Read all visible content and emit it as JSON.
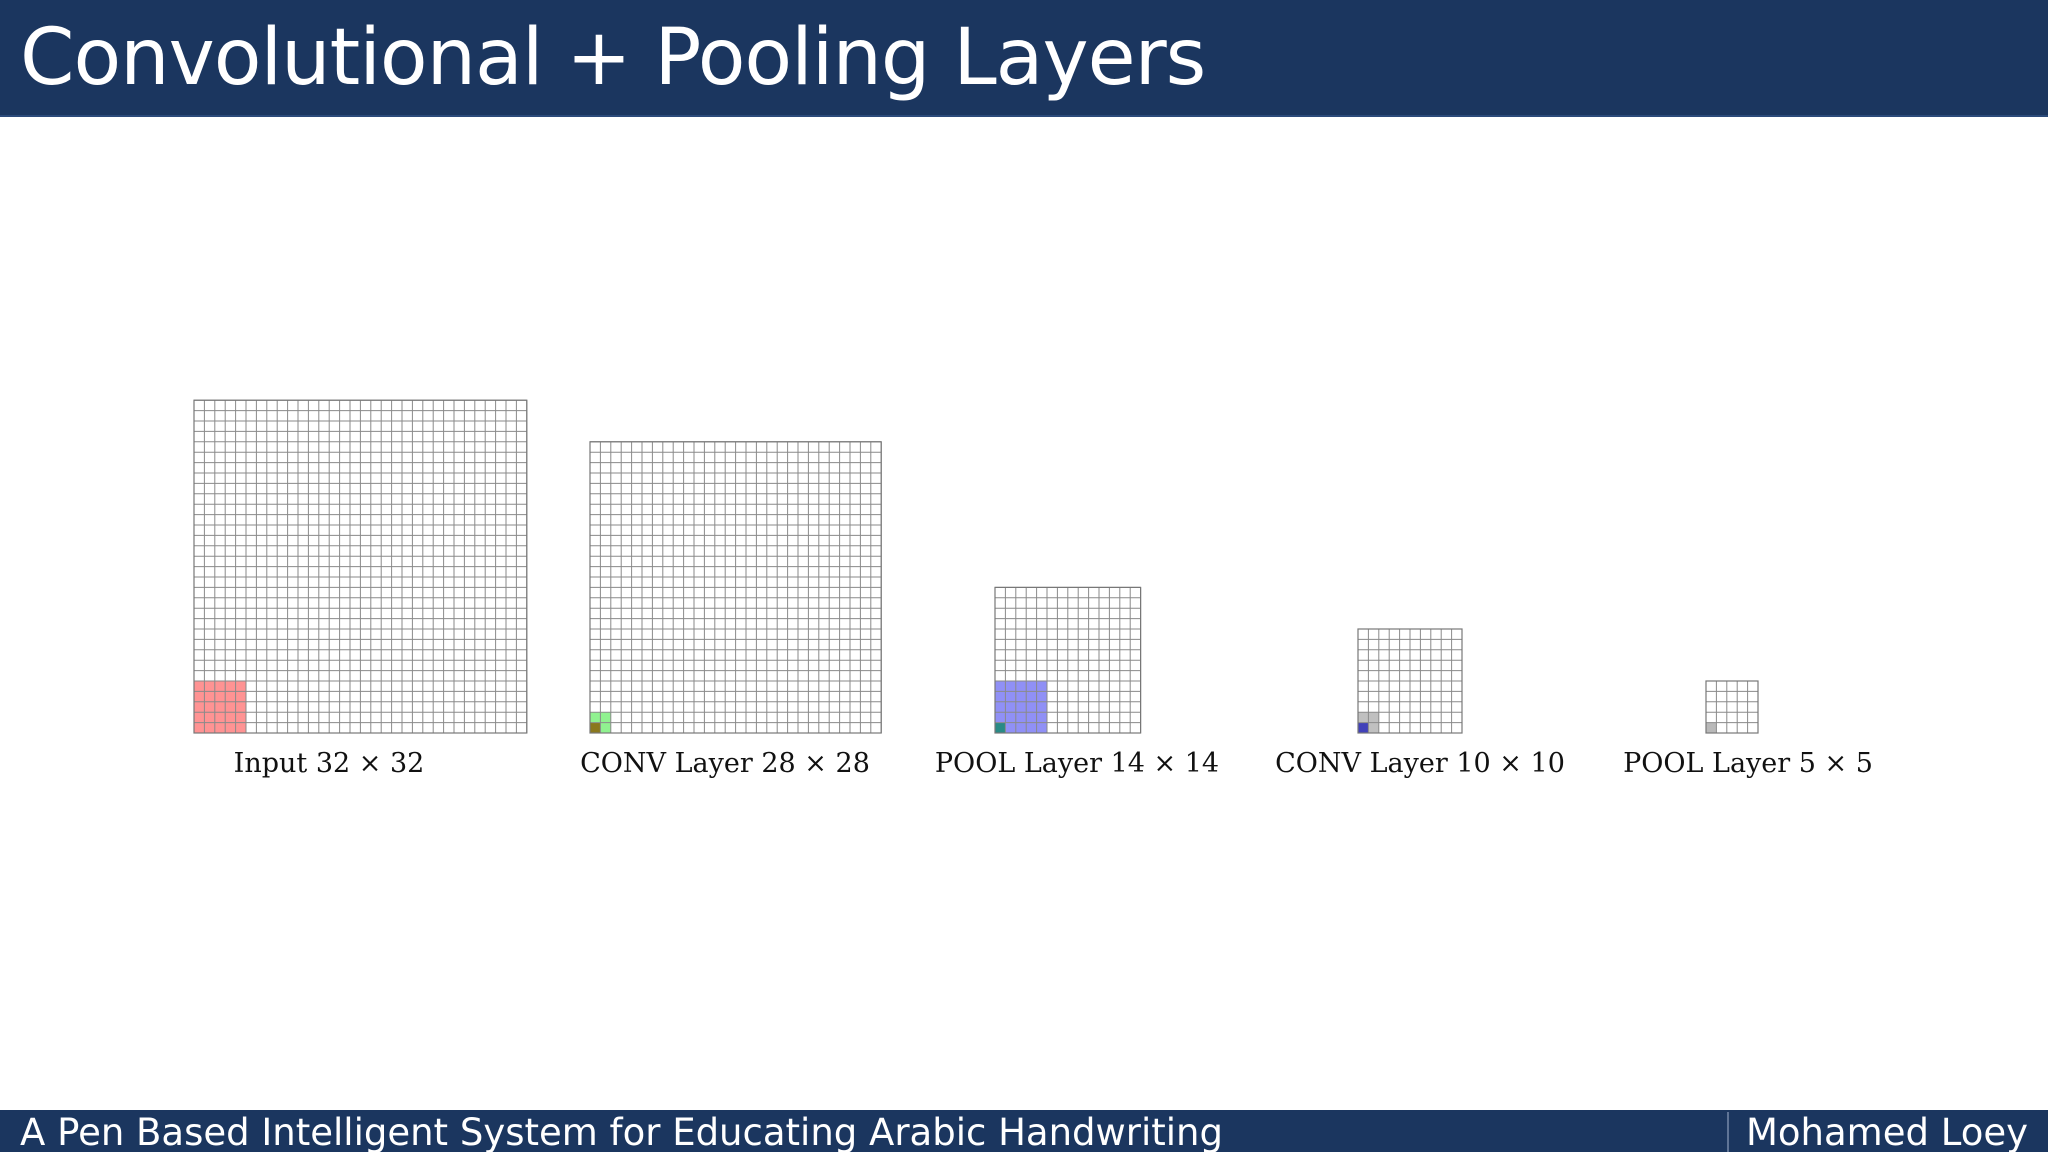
{
  "slide": {
    "title": "Convolutional + Pooling Layers"
  },
  "footer": {
    "left_text": "A Pen Based Intelligent System for Educating Arabic Handwriting",
    "right_text": "Mohamed Loey"
  },
  "diagram": {
    "grid_line_color": "#8a8a8a",
    "layers": [
      {
        "name": "input",
        "label": "Input 32 × 32",
        "size": 32,
        "highlights": [
          {
            "cells": 5,
            "color": "#ff6f6f",
            "opacity": 0.75
          }
        ]
      },
      {
        "name": "conv1",
        "label": "CONV Layer 28 × 28",
        "size": 28,
        "highlights": [
          {
            "cells": 2,
            "color": "#7cf07c",
            "opacity": 0.85
          },
          {
            "cells": 1,
            "color": "#8a6a12",
            "opacity": 0.9
          }
        ]
      },
      {
        "name": "pool1",
        "label": "POOL Layer 14 × 14",
        "size": 14,
        "highlights": [
          {
            "cells": 5,
            "color": "#7c7cf5",
            "opacity": 0.85
          },
          {
            "cells": 1,
            "color": "#1e8a7a",
            "opacity": 0.9
          }
        ]
      },
      {
        "name": "conv2",
        "label": "CONV Layer 10 × 10",
        "size": 10,
        "highlights": [
          {
            "cells": 2,
            "color": "#b9b9b9",
            "opacity": 0.9
          },
          {
            "cells": 1,
            "color": "#3a3ab8",
            "opacity": 0.95
          }
        ]
      },
      {
        "name": "pool2",
        "label": "POOL Layer 5 × 5",
        "size": 5,
        "highlights": [
          {
            "cells": 1,
            "color": "#b5b5b5",
            "opacity": 0.95
          }
        ]
      }
    ]
  }
}
